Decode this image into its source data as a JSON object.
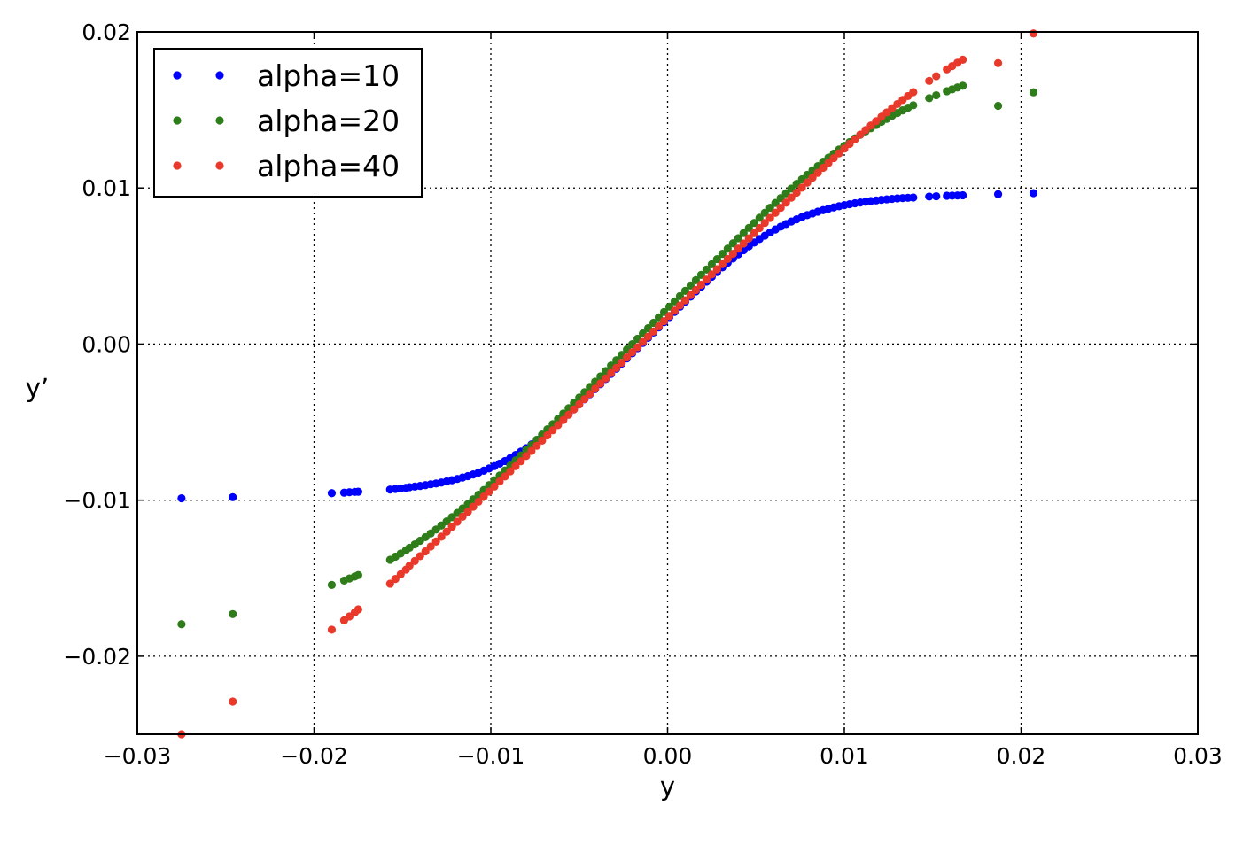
{
  "chart_data": {
    "type": "scatter",
    "title": "",
    "xlabel": "y",
    "ylabel": "y’",
    "xlim": [
      -0.03,
      0.03
    ],
    "ylim": [
      -0.025,
      0.02
    ],
    "xticks": [
      -0.03,
      -0.02,
      -0.01,
      0.0,
      0.01,
      0.02,
      0.03
    ],
    "xtick_labels": [
      "−0.03",
      "−0.02",
      "−0.01",
      "0.00",
      "0.01",
      "0.02",
      "0.03"
    ],
    "yticks": [
      -0.02,
      -0.01,
      0.0,
      0.01,
      0.02
    ],
    "ytick_labels": [
      "−0.02",
      "−0.01",
      "0.00",
      "0.01",
      "0.02"
    ],
    "grid": true,
    "legend_position": "top-left",
    "x": [
      -0.0275,
      -0.0246,
      -0.019,
      -0.0183,
      -0.018,
      -0.0177,
      -0.0175,
      -0.0157,
      -0.0154,
      -0.0151,
      -0.0148,
      -0.0146,
      -0.0143,
      -0.014,
      -0.0137,
      -0.0134,
      -0.0131,
      -0.0128,
      -0.0125,
      -0.0122,
      -0.0119,
      -0.0116,
      -0.0113,
      -0.011,
      -0.0107,
      -0.0104,
      -0.0101,
      -0.0098,
      -0.0095,
      -0.0092,
      -0.0089,
      -0.0086,
      -0.0083,
      -0.008,
      -0.0077,
      -0.0074,
      -0.0071,
      -0.0068,
      -0.0065,
      -0.0062,
      -0.0059,
      -0.0056,
      -0.0053,
      -0.005,
      -0.0047,
      -0.0044,
      -0.0041,
      -0.0038,
      -0.0035,
      -0.0032,
      -0.0029,
      -0.0026,
      -0.0023,
      -0.002,
      -0.0017,
      -0.0014,
      -0.0011,
      -0.0008,
      -0.0005,
      -0.0002,
      0.0001,
      0.0004,
      0.0007,
      0.001,
      0.0013,
      0.0016,
      0.0019,
      0.0022,
      0.0025,
      0.0028,
      0.0031,
      0.0034,
      0.0037,
      0.004,
      0.0043,
      0.0046,
      0.0049,
      0.0052,
      0.0055,
      0.0058,
      0.0061,
      0.0064,
      0.0067,
      0.007,
      0.0073,
      0.0076,
      0.0079,
      0.0082,
      0.0085,
      0.0088,
      0.0091,
      0.0094,
      0.0097,
      0.01,
      0.0103,
      0.0106,
      0.0109,
      0.0112,
      0.0115,
      0.0118,
      0.0121,
      0.0124,
      0.0127,
      0.013,
      0.0133,
      0.0136,
      0.0139,
      0.0148,
      0.0152,
      0.0158,
      0.0161,
      0.0164,
      0.0167,
      0.0187,
      0.0207
    ],
    "series": [
      {
        "name": "alpha=10",
        "color": "#0000ff",
        "y": [
          -0.00988,
          -0.00981,
          -0.00955,
          -0.00952,
          -0.00949,
          -0.00947,
          -0.00946,
          -0.00932,
          -0.00928,
          -0.00925,
          -0.00921,
          -0.00917,
          -0.00913,
          -0.00909,
          -0.00904,
          -0.00898,
          -0.00893,
          -0.00887,
          -0.0088,
          -0.00872,
          -0.00864,
          -0.00855,
          -0.00846,
          -0.00835,
          -0.00823,
          -0.00811,
          -0.00797,
          -0.00782,
          -0.00766,
          -0.00749,
          -0.0073,
          -0.0071,
          -0.00689,
          -0.00667,
          -0.00643,
          -0.00618,
          -0.00592,
          -0.00565,
          -0.00537,
          -0.00508,
          -0.00479,
          -0.00448,
          -0.00417,
          -0.00386,
          -0.00354,
          -0.00322,
          -0.00289,
          -0.00257,
          -0.00224,
          -0.00191,
          -0.00158,
          -0.00125,
          -0.00092,
          -0.00059,
          -0.00026,
          7e-05,
          0.0004,
          0.00074,
          0.00107,
          0.0014,
          0.00173,
          0.00206,
          0.00239,
          0.00272,
          0.00304,
          0.00337,
          0.00368,
          0.004,
          0.00431,
          0.00461,
          0.00491,
          0.0052,
          0.00548,
          0.00575,
          0.00601,
          0.00626,
          0.0065,
          0.00673,
          0.00694,
          0.00715,
          0.00734,
          0.00752,
          0.00769,
          0.00785,
          0.00799,
          0.00813,
          0.00826,
          0.00837,
          0.00848,
          0.00858,
          0.00867,
          0.00875,
          0.00883,
          0.0089,
          0.00896,
          0.00902,
          0.00907,
          0.00912,
          0.00916,
          0.0092,
          0.00924,
          0.00927,
          0.0093,
          0.00933,
          0.00935,
          0.00937,
          0.00939,
          0.00945,
          0.00947,
          0.0095,
          0.00951,
          0.00952,
          0.00953,
          0.0096,
          0.00967
        ]
      },
      {
        "name": "alpha=20",
        "color": "#2e7d1a",
        "y": [
          -0.01795,
          -0.0173,
          -0.01543,
          -0.01515,
          -0.01502,
          -0.01489,
          -0.0148,
          -0.01382,
          -0.01362,
          -0.01342,
          -0.01321,
          -0.01305,
          -0.01283,
          -0.0126,
          -0.01237,
          -0.01213,
          -0.01188,
          -0.01162,
          -0.01136,
          -0.01109,
          -0.01082,
          -0.01053,
          -0.01025,
          -0.00995,
          -0.00965,
          -0.00935,
          -0.00904,
          -0.00873,
          -0.00842,
          -0.0081,
          -0.00778,
          -0.00745,
          -0.00713,
          -0.0068,
          -0.00647,
          -0.00613,
          -0.0058,
          -0.00546,
          -0.00513,
          -0.00479,
          -0.00445,
          -0.00411,
          -0.00377,
          -0.00343,
          -0.00309,
          -0.00275,
          -0.00241,
          -0.00207,
          -0.00173,
          -0.00138,
          -0.00104,
          -0.0007,
          -0.00035,
          -1e-05,
          0.00034,
          0.00068,
          0.00102,
          0.00136,
          0.00171,
          0.00205,
          0.00239,
          0.00273,
          0.00307,
          0.00341,
          0.00375,
          0.00409,
          0.00443,
          0.00477,
          0.00511,
          0.00544,
          0.00578,
          0.00611,
          0.00645,
          0.00678,
          0.00711,
          0.00744,
          0.00776,
          0.00809,
          0.00841,
          0.00873,
          0.00904,
          0.00935,
          0.00966,
          0.00996,
          0.01026,
          0.01055,
          0.01084,
          0.01113,
          0.0114,
          0.01168,
          0.01194,
          0.0122,
          0.01246,
          0.0127,
          0.01294,
          0.01318,
          0.0134,
          0.01362,
          0.01383,
          0.01404,
          0.01424,
          0.01443,
          0.01462,
          0.0148,
          0.01497,
          0.01514,
          0.0153,
          0.01575,
          0.01594,
          0.0162,
          0.01632,
          0.01644,
          0.01655,
          0.01526,
          0.01613
        ]
      },
      {
        "name": "alpha=40",
        "color": "#e8392a",
        "y": [
          -0.025,
          -0.0229,
          -0.0183,
          -0.0177,
          -0.01745,
          -0.0172,
          -0.017,
          -0.01535,
          -0.01505,
          -0.01475,
          -0.01445,
          -0.0142,
          -0.0139,
          -0.01359,
          -0.01328,
          -0.01297,
          -0.01265,
          -0.01234,
          -0.01202,
          -0.0117,
          -0.01138,
          -0.01106,
          -0.01074,
          -0.01042,
          -0.0101,
          -0.00977,
          -0.00945,
          -0.00913,
          -0.0088,
          -0.00848,
          -0.00815,
          -0.00782,
          -0.0075,
          -0.00717,
          -0.00684,
          -0.00651,
          -0.00618,
          -0.00585,
          -0.00552,
          -0.00519,
          -0.00486,
          -0.00453,
          -0.00419,
          -0.00386,
          -0.00353,
          -0.0032,
          -0.00286,
          -0.00253,
          -0.0022,
          -0.00186,
          -0.00153,
          -0.0012,
          -0.00086,
          -0.00053,
          -0.0002,
          0.00013,
          0.00047,
          0.0008,
          0.00113,
          0.00147,
          0.0018,
          0.00213,
          0.00247,
          0.0028,
          0.00313,
          0.00346,
          0.0038,
          0.00413,
          0.00446,
          0.00479,
          0.00512,
          0.00545,
          0.00578,
          0.00611,
          0.00644,
          0.00677,
          0.0071,
          0.00743,
          0.00776,
          0.00808,
          0.00841,
          0.00873,
          0.00906,
          0.00938,
          0.0097,
          0.01002,
          0.01034,
          0.01066,
          0.01097,
          0.01129,
          0.0116,
          0.01191,
          0.01222,
          0.01252,
          0.01282,
          0.01312,
          0.01342,
          0.01371,
          0.014,
          0.01428,
          0.01456,
          0.01484,
          0.01511,
          0.01538,
          0.01564,
          0.01589,
          0.01614,
          0.01686,
          0.01716,
          0.0176,
          0.01781,
          0.01802,
          0.01822,
          0.018,
          0.0199
        ]
      }
    ]
  }
}
